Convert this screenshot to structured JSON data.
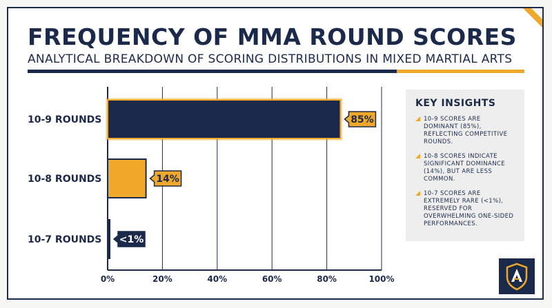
{
  "header": {
    "title": "FREQUENCY OF MMA ROUND SCORES",
    "subtitle": "ANALYTICAL BREAKDOWN OF SCORING DISTRIBUTIONS IN MIXED MARTIAL ARTS"
  },
  "chart_data": {
    "type": "bar",
    "orientation": "horizontal",
    "title": "FREQUENCY OF MMA ROUND SCORES",
    "subtitle": "ANALYTICAL BREAKDOWN OF SCORING DISTRIBUTIONS IN MIXED MARTIAL ARTS",
    "categories": [
      "10-9 ROUNDS",
      "10-8 ROUNDS",
      "10-7 ROUNDS"
    ],
    "values": [
      85,
      14,
      0.7
    ],
    "data_labels": [
      "85%",
      "14%",
      "<1%"
    ],
    "bar_colors": [
      "#1b2a4a",
      "#f0a82a",
      "#1b2a4a"
    ],
    "xlim": [
      0,
      100
    ],
    "x_ticks": [
      0,
      20,
      40,
      60,
      80,
      100
    ],
    "x_tick_labels": [
      "0%",
      "20%",
      "40%",
      "60%",
      "80%",
      "100%"
    ],
    "xlabel": "",
    "ylabel": "",
    "grid": "vertical",
    "legend": "none"
  },
  "insights": {
    "title": "KEY INSIGHTS",
    "items": [
      "10-9 scores are dominant (85%), reflecting competitive rounds.",
      "10-8 scores indicate significant dominance (14%), but are less common.",
      "10-7 scores are extremely rare (<1%), reserved for overwhelming one-sided performances."
    ]
  },
  "colors": {
    "navy": "#1b2a4a",
    "gold": "#f0a82a",
    "panel": "#eeeeee"
  },
  "icons": {
    "logo": "shield-logo-icon"
  }
}
